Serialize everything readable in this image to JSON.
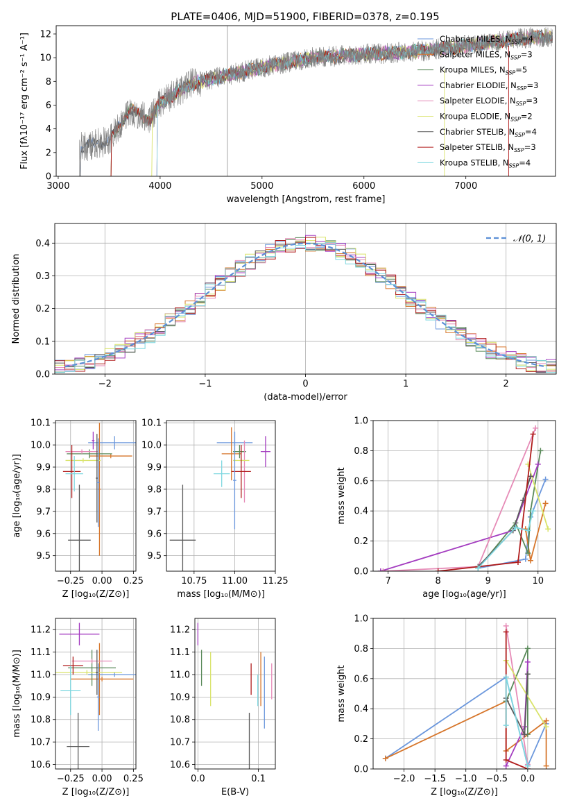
{
  "title": "PLATE=0406, MJD=51900, FIBERID=0378, z=0.195",
  "colors": [
    "#6b97dc",
    "#d6752a",
    "#5a8a5a",
    "#a43dc0",
    "#e68bb7",
    "#d9e36a",
    "#5a5a5a",
    "#b01c1c",
    "#7ed7e0"
  ],
  "legend": [
    "Chabrier MILES, Nₛₚₚ=4",
    "Salpeter MILES, Nₛₚₚ=3",
    "Kroupa MILES, Nₛₚₚ=5",
    "Chabrier ELODIE, Nₛₚₚ=3",
    "Salpeter ELODIE, Nₛₚₚ=3",
    "Kroupa ELODIE, Nₛₚₚ=2",
    "Chabrier STELIB, Nₛₚₚ=4",
    "Salpeter STELIB, Nₛₚₚ=3",
    "Kroupa STELIB, Nₛₚₚ=4"
  ],
  "legend_labels": [
    {
      "pre": "Chabrier MILES, N",
      "sub": "SSP",
      "post": "=4"
    },
    {
      "pre": "Salpeter MILES, N",
      "sub": "SSP",
      "post": "=3"
    },
    {
      "pre": "Kroupa MILES, N",
      "sub": "SSP",
      "post": "=5"
    },
    {
      "pre": "Chabrier ELODIE, N",
      "sub": "SSP",
      "post": "=3"
    },
    {
      "pre": "Salpeter ELODIE, N",
      "sub": "SSP",
      "post": "=3"
    },
    {
      "pre": "Kroupa ELODIE, N",
      "sub": "SSP",
      "post": "=2"
    },
    {
      "pre": "Chabrier STELIB, N",
      "sub": "SSP",
      "post": "=4"
    },
    {
      "pre": "Salpeter STELIB, N",
      "sub": "SSP",
      "post": "=3"
    },
    {
      "pre": "Kroupa STELIB, N",
      "sub": "SSP",
      "post": "=4"
    }
  ],
  "chart_data": [
    {
      "type": "line",
      "name": "spectrum",
      "xlabel": "wavelength [Angstrom, rest frame]",
      "ylabel": "Flux [fλ10⁻¹⁷ erg cm⁻² s⁻¹ A⁻¹]",
      "xlim": [
        2980,
        7880
      ],
      "ylim": [
        0,
        12.7
      ],
      "xticks": [
        3000,
        4000,
        5000,
        6000,
        7000
      ],
      "yticks": [
        0,
        2,
        4,
        6,
        8,
        10,
        12
      ],
      "continuum": [
        [
          3200,
          2.4
        ],
        [
          3500,
          3.0
        ],
        [
          3700,
          5.6
        ],
        [
          3900,
          4.8
        ],
        [
          4000,
          6.2
        ],
        [
          4300,
          7.8
        ],
        [
          4600,
          8.4
        ],
        [
          5000,
          9.2
        ],
        [
          5500,
          10.0
        ],
        [
          6000,
          10.3
        ],
        [
          6500,
          10.5
        ],
        [
          7000,
          11.0
        ],
        [
          7500,
          11.6
        ],
        [
          7850,
          11.8
        ]
      ]
    },
    {
      "type": "line",
      "name": "residual-histogram",
      "xlabel": "(data-model)/error",
      "ylabel": "Normed distribution",
      "xlim": [
        -2.5,
        2.5
      ],
      "ylim": [
        0,
        0.46
      ],
      "xticks": [
        -2,
        -1,
        0,
        1,
        2
      ],
      "yticks": [
        0.0,
        0.1,
        0.2,
        0.3,
        0.4
      ],
      "legend": "𝒩(0, 1)",
      "bin_width": 0.1
    },
    {
      "type": "scatter",
      "name": "age-vs-Z",
      "xlabel": "Z [log₁₀(Z/Z⊙)]",
      "ylabel": "age  [log₁₀(age/yr)]",
      "xlim": [
        -0.37,
        0.27
      ],
      "ylim": [
        9.43,
        10.11
      ],
      "xticks": [
        -0.25,
        0.0,
        0.25
      ],
      "yticks": [
        9.5,
        9.6,
        9.7,
        9.8,
        9.9,
        10.0,
        10.1
      ],
      "points": [
        {
          "c": 0,
          "x": 0.1,
          "xe": 0.21,
          "y": 10.01,
          "ye": 0.03
        },
        {
          "c": 1,
          "x": 0.07,
          "xe": 0.17,
          "y": 9.95,
          "ye": 0.01
        },
        {
          "c": 1,
          "x": -0.02,
          "xe": 0.01,
          "y": 9.8,
          "ye": 0.3
        },
        {
          "c": 2,
          "x": -0.1,
          "xe": 0.18,
          "y": 9.96,
          "ye": 0.02
        },
        {
          "c": 3,
          "x": -0.07,
          "xe": 0.01,
          "y": 10.02,
          "ye": 0.04
        },
        {
          "c": 4,
          "x": -0.16,
          "xe": 0.13,
          "y": 9.97,
          "ye": 0.01
        },
        {
          "c": 5,
          "x": -0.15,
          "xe": 0.14,
          "y": 9.93,
          "ye": 0.01
        },
        {
          "c": 6,
          "x": -0.18,
          "xe": 0.09,
          "y": 9.57,
          "ye": 0.25
        },
        {
          "c": 6,
          "x": -0.04,
          "xe": 0.01,
          "y": 9.85,
          "ye": 0.2
        },
        {
          "c": 7,
          "x": -0.24,
          "xe": 0.07,
          "y": 9.88,
          "ye": 0.12
        },
        {
          "c": 8,
          "x": -0.22,
          "xe": 0.07,
          "y": 9.87,
          "ye": 0.08
        },
        {
          "c": 0,
          "x": -0.03,
          "xe": 0.01,
          "y": 9.83,
          "ye": 0.2
        }
      ]
    },
    {
      "type": "scatter",
      "name": "age-vs-mass",
      "xlabel": "mass [log₁₀(M/M⊙)]",
      "ylabel": "",
      "xlim": [
        10.58,
        11.25
      ],
      "ylim": [
        9.43,
        10.11
      ],
      "xticks": [
        10.75,
        11.0,
        11.25
      ],
      "yticks": [
        9.5,
        9.6,
        9.7,
        9.8,
        9.9,
        10.0,
        10.1
      ],
      "points": [
        {
          "c": 0,
          "x": 11.0,
          "xe": 0.11,
          "y": 10.01,
          "ye": 0.05
        },
        {
          "c": 1,
          "x": 10.98,
          "xe": 0.06,
          "y": 9.96,
          "ye": 0.12
        },
        {
          "c": 2,
          "x": 11.03,
          "xe": 0.04,
          "y": 9.97,
          "ye": 0.03
        },
        {
          "c": 3,
          "x": 11.19,
          "xe": 0.03,
          "y": 9.97,
          "ye": 0.07
        },
        {
          "c": 4,
          "x": 11.06,
          "xe": 0.01,
          "y": 9.88,
          "ye": 0.14
        },
        {
          "c": 5,
          "x": 11.04,
          "xe": 0.05,
          "y": 9.93,
          "ye": 0.01
        },
        {
          "c": 6,
          "x": 10.68,
          "xe": 0.08,
          "y": 9.57,
          "ye": 0.25
        },
        {
          "c": 7,
          "x": 11.04,
          "xe": 0.06,
          "y": 9.88,
          "ye": 0.12
        },
        {
          "c": 8,
          "x": 10.92,
          "xe": 0.05,
          "y": 9.87,
          "ye": 0.06
        },
        {
          "c": 0,
          "x": 11.0,
          "xe": 0.01,
          "y": 9.84,
          "ye": 0.22
        }
      ]
    },
    {
      "type": "line",
      "name": "mass-weight-vs-age",
      "xlabel": "age  [log₁₀(age/yr)]",
      "ylabel": "mass weight",
      "xlim": [
        6.7,
        10.35
      ],
      "ylim": [
        0,
        1.0
      ],
      "xticks": [
        7,
        8,
        9,
        10
      ],
      "yticks": [
        0.0,
        0.2,
        0.4,
        0.6,
        0.8,
        1.0
      ],
      "series": [
        {
          "c": 0,
          "pts": [
            [
              8.8,
              0.02
            ],
            [
              9.75,
              0.08
            ],
            [
              9.85,
              0.36
            ],
            [
              10.15,
              0.61
            ]
          ]
        },
        {
          "c": 1,
          "pts": [
            [
              9.75,
              0.28
            ],
            [
              9.85,
              0.07
            ],
            [
              10.15,
              0.45
            ]
          ]
        },
        {
          "c": 2,
          "pts": [
            [
              8.8,
              0.02
            ],
            [
              9.55,
              0.32
            ],
            [
              9.8,
              0.12
            ],
            [
              9.85,
              0.4
            ],
            [
              10.05,
              0.8
            ]
          ]
        },
        {
          "c": 3,
          "pts": [
            [
              6.85,
              0.0
            ],
            [
              9.5,
              0.27
            ],
            [
              10.0,
              0.71
            ]
          ]
        },
        {
          "c": 4,
          "pts": [
            [
              6.9,
              0.0
            ],
            [
              8.8,
              0.03
            ],
            [
              9.95,
              0.95
            ]
          ]
        },
        {
          "c": 5,
          "pts": [
            [
              9.8,
              0.71
            ],
            [
              10.2,
              0.28
            ]
          ]
        },
        {
          "c": 6,
          "pts": [
            [
              8.8,
              0.03
            ],
            [
              9.5,
              0.27
            ],
            [
              9.7,
              0.47
            ],
            [
              9.85,
              0.63
            ]
          ]
        },
        {
          "c": 7,
          "pts": [
            [
              8.0,
              0.0
            ],
            [
              9.6,
              0.06
            ],
            [
              9.9,
              0.91
            ]
          ]
        },
        {
          "c": 8,
          "pts": [
            [
              8.8,
              0.02
            ],
            [
              9.55,
              0.29
            ],
            [
              9.8,
              0.27
            ],
            [
              9.9,
              0.4
            ]
          ]
        }
      ]
    },
    {
      "type": "scatter",
      "name": "mass-vs-Z",
      "xlabel": "Z [log₁₀(Z/Z⊙)]",
      "ylabel": "mass [log₁₀(M/M⊙)]",
      "xlim": [
        -0.37,
        0.27
      ],
      "ylim": [
        10.58,
        11.25
      ],
      "xticks": [
        -0.25,
        0.0,
        0.25
      ],
      "yticks": [
        10.6,
        10.7,
        10.8,
        10.9,
        11.0,
        11.1,
        11.2
      ],
      "points": [
        {
          "c": 0,
          "x": 0.1,
          "xe": 0.21,
          "y": 11.0,
          "ye": 0.01
        },
        {
          "c": 1,
          "x": 0.0,
          "xe": 0.25,
          "y": 10.98,
          "ye": 0.01
        },
        {
          "c": 1,
          "x": -0.02,
          "xe": 0.01,
          "y": 10.98,
          "ye": 0.16
        },
        {
          "c": 2,
          "x": -0.08,
          "xe": 0.19,
          "y": 11.03,
          "ye": 0.08
        },
        {
          "c": 3,
          "x": -0.18,
          "xe": 0.16,
          "y": 11.18,
          "ye": 0.05
        },
        {
          "c": 4,
          "x": -0.08,
          "xe": 0.16,
          "y": 11.06,
          "ye": 0.01
        },
        {
          "c": 5,
          "x": -0.12,
          "xe": 0.28,
          "y": 11.01,
          "ye": 0.01
        },
        {
          "c": 6,
          "x": -0.19,
          "xe": 0.09,
          "y": 10.68,
          "ye": 0.15
        },
        {
          "c": 6,
          "x": -0.04,
          "xe": 0.01,
          "y": 11.01,
          "ye": 0.1
        },
        {
          "c": 7,
          "x": -0.23,
          "xe": 0.08,
          "y": 11.04,
          "ye": 0.04
        },
        {
          "c": 8,
          "x": -0.25,
          "xe": 0.08,
          "y": 10.93,
          "ye": 0.11
        },
        {
          "c": 0,
          "x": -0.03,
          "xe": 0.01,
          "y": 10.9,
          "ye": 0.15
        }
      ]
    },
    {
      "type": "scatter",
      "name": "mass-vs-ebv",
      "xlabel": "E(B-V)",
      "ylabel": "",
      "xlim": [
        -0.005,
        0.128
      ],
      "ylim": [
        10.58,
        11.25
      ],
      "xticks": [
        0.0,
        0.1
      ],
      "yticks": [
        10.6,
        10.7,
        10.8,
        10.9,
        11.0,
        11.1,
        11.2
      ],
      "points": [
        {
          "c": 3,
          "x": 0.0,
          "xe": 0.0,
          "y": 11.18,
          "ye": 0.05
        },
        {
          "c": 2,
          "x": 0.006,
          "xe": 0.0,
          "y": 11.03,
          "ye": 0.08
        },
        {
          "c": 5,
          "x": 0.021,
          "xe": 0.0,
          "y": 10.98,
          "ye": 0.12
        },
        {
          "c": 6,
          "x": 0.085,
          "xe": 0.0,
          "y": 10.68,
          "ye": 0.15
        },
        {
          "c": 7,
          "x": 0.088,
          "xe": 0.0,
          "y": 10.98,
          "ye": 0.07
        },
        {
          "c": 8,
          "x": 0.099,
          "xe": 0.0,
          "y": 10.93,
          "ye": 0.07
        },
        {
          "c": 1,
          "x": 0.104,
          "xe": 0.0,
          "y": 10.98,
          "ye": 0.12
        },
        {
          "c": 0,
          "x": 0.11,
          "xe": 0.0,
          "y": 10.92,
          "ye": 0.16
        },
        {
          "c": 4,
          "x": 0.122,
          "xe": 0.0,
          "y": 10.97,
          "ye": 0.08
        }
      ]
    },
    {
      "type": "line",
      "name": "mass-weight-vs-Z",
      "xlabel": "Z [log₁₀(Z/Z⊙)]",
      "ylabel": "mass weight",
      "xlim": [
        -2.5,
        0.45
      ],
      "ylim": [
        0,
        1.0
      ],
      "xticks": [
        -2.0,
        -1.5,
        -1.0,
        -0.5,
        0.0
      ],
      "yticks": [
        0.0,
        0.2,
        0.4,
        0.6,
        0.8,
        1.0
      ],
      "series": [
        {
          "c": 0,
          "pts": [
            [
              -2.3,
              0.07
            ],
            [
              -0.35,
              0.61
            ],
            [
              0.0,
              0.02
            ],
            [
              0.3,
              0.3
            ]
          ]
        },
        {
          "c": 1,
          "pts": [
            [
              -2.3,
              0.07
            ],
            [
              -0.35,
              0.45
            ],
            [
              -0.35,
              0.12
            ],
            [
              0.3,
              0.32
            ],
            [
              0.3,
              0.02
            ]
          ]
        },
        {
          "c": 2,
          "pts": [
            [
              -0.35,
              0.45
            ],
            [
              0.0,
              0.8
            ],
            [
              0.0,
              0.23
            ]
          ]
        },
        {
          "c": 3,
          "pts": [
            [
              -0.35,
              0.02
            ],
            [
              -0.05,
              0.28
            ],
            [
              0.0,
              0.71
            ]
          ]
        },
        {
          "c": 4,
          "pts": [
            [
              -0.35,
              0.95
            ],
            [
              0.0,
              0.03
            ]
          ]
        },
        {
          "c": 5,
          "pts": [
            [
              -0.35,
              0.72
            ],
            [
              0.3,
              0.28
            ]
          ]
        },
        {
          "c": 6,
          "pts": [
            [
              -0.35,
              0.47
            ],
            [
              -0.05,
              0.23
            ],
            [
              0.0,
              0.63
            ]
          ]
        },
        {
          "c": 7,
          "pts": [
            [
              -0.35,
              0.91
            ],
            [
              -0.35,
              0.06
            ],
            [
              0.0,
              0.0
            ]
          ]
        },
        {
          "c": 8,
          "pts": [
            [
              -0.35,
              0.29
            ],
            [
              -0.35,
              0.61
            ],
            [
              0.0,
              0.02
            ]
          ]
        }
      ]
    }
  ]
}
